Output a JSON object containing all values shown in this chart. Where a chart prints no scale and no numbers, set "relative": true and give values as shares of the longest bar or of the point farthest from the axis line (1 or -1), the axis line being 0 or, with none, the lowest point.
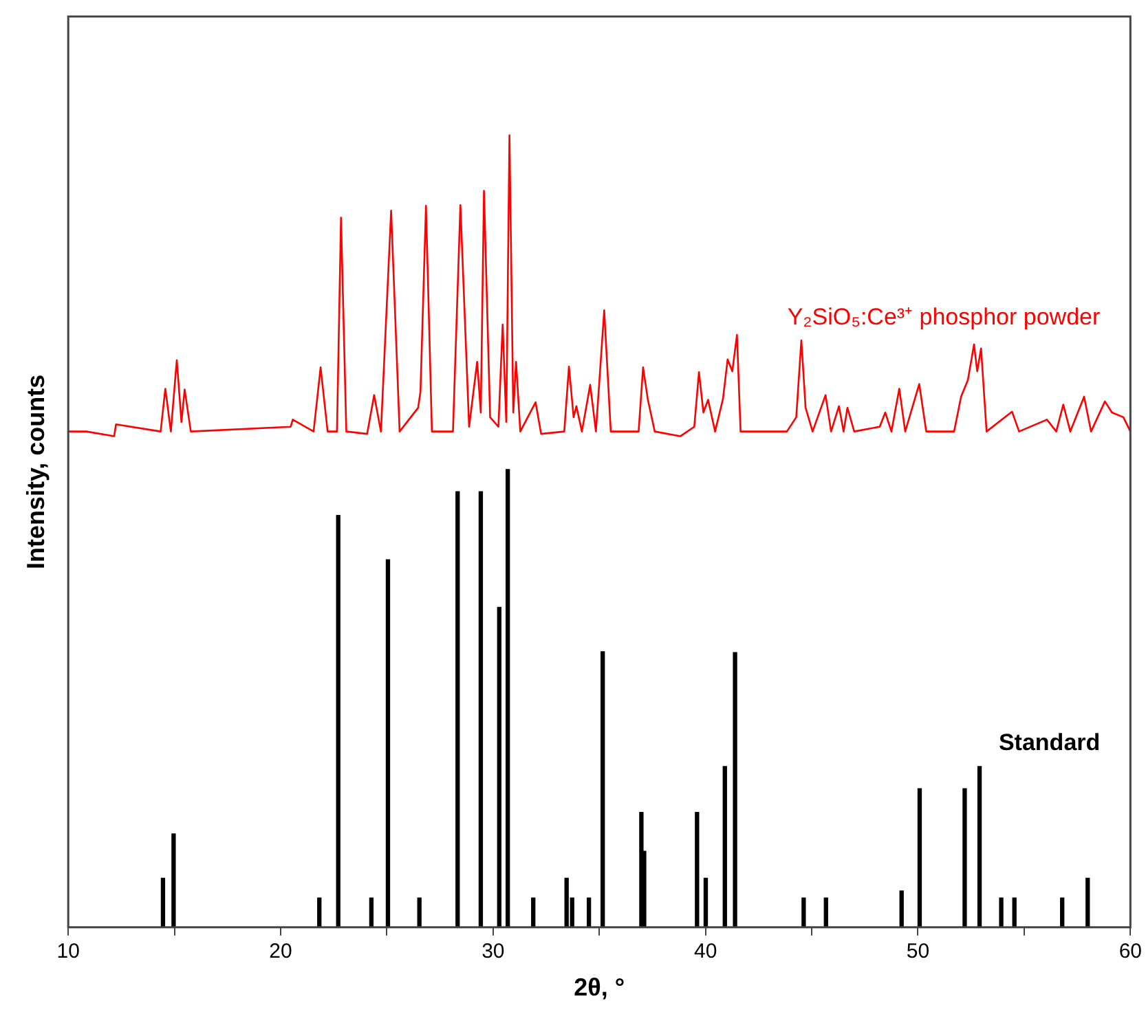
{
  "chart_data": {
    "type": "line",
    "xlabel": "2θ, °",
    "ylabel": "Intensity, counts",
    "relative": true,
    "legend": false,
    "grid": false,
    "xlim": [
      10,
      60
    ],
    "xticks": [
      10,
      {
        "value": 15,
        "label": null
      },
      20,
      {
        "value": 25,
        "label": null
      },
      30,
      {
        "value": 35,
        "label": null
      },
      40,
      {
        "value": 45,
        "label": null
      },
      50,
      {
        "value": 55,
        "label": null
      },
      60
    ],
    "series": [
      {
        "name": "Y₂SiO₅:Ce³⁺ phosphor powder",
        "color": "#ff0000",
        "marker": "none",
        "x": [
          10,
          10.85,
          12.16,
          12.25,
          14.35,
          14.57,
          14.83,
          15.11,
          15.33,
          15.48,
          15.77,
          20.47,
          20.57,
          21.55,
          21.88,
          22.21,
          22.65,
          22.84,
          23.09,
          24.07,
          24.4,
          24.72,
          25.2,
          25.6,
          26.47,
          26.58,
          26.84,
          27.12,
          28.11,
          28.46,
          28.87,
          29.25,
          29.42,
          29.57,
          29.86,
          30.25,
          30.45,
          30.62,
          30.77,
          30.95,
          31.08,
          31.28,
          32,
          32.26,
          33.35,
          33.57,
          33.79,
          33.92,
          34.18,
          34.57,
          34.84,
          35.23,
          35.54,
          35.75,
          36.85,
          37.06,
          37.28,
          37.61,
          38.81,
          39.47,
          39.69,
          39.9,
          40.12,
          40.45,
          40.82,
          41.04,
          41.26,
          41.48,
          41.65,
          43.83,
          44.27,
          44.51,
          44.71,
          45.04,
          45.65,
          45.91,
          46.28,
          46.5,
          46.68,
          47,
          48.2,
          48.46,
          48.75,
          49.12,
          49.4,
          50.06,
          50.39,
          51.7,
          52.03,
          52.35,
          52.64,
          52.79,
          52.97,
          53.23,
          54.43,
          54.76,
          56.07,
          56.51,
          56.84,
          57.17,
          57.82,
          58.15,
          58.8,
          59.13,
          59.67,
          60
        ],
        "values": [
          0.626,
          0.626,
          0.62,
          0.635,
          0.626,
          0.68,
          0.626,
          0.716,
          0.638,
          0.679,
          0.626,
          0.632,
          0.641,
          0.626,
          0.707,
          0.626,
          0.626,
          0.896,
          0.626,
          0.623,
          0.672,
          0.626,
          0.905,
          0.626,
          0.656,
          0.676,
          0.911,
          0.626,
          0.626,
          0.912,
          0.632,
          0.714,
          0.65,
          0.93,
          0.644,
          0.632,
          0.761,
          0.638,
          1,
          0.65,
          0.714,
          0.626,
          0.663,
          0.623,
          0.626,
          0.708,
          0.644,
          0.658,
          0.626,
          0.685,
          0.626,
          0.779,
          0.626,
          0.626,
          0.626,
          0.707,
          0.667,
          0.626,
          0.62,
          0.632,
          0.701,
          0.65,
          0.666,
          0.626,
          0.667,
          0.717,
          0.702,
          0.748,
          0.626,
          0.626,
          0.644,
          0.741,
          0.656,
          0.626,
          0.672,
          0.626,
          0.658,
          0.626,
          0.656,
          0.626,
          0.632,
          0.65,
          0.626,
          0.68,
          0.626,
          0.686,
          0.626,
          0.626,
          0.67,
          0.691,
          0.736,
          0.702,
          0.731,
          0.626,
          0.651,
          0.626,
          0.641,
          0.626,
          0.66,
          0.626,
          0.67,
          0.626,
          0.664,
          0.65,
          0.644,
          0.626
        ]
      },
      {
        "name": "Standard",
        "type": "bar",
        "color": "#000000",
        "x": [
          14.46,
          14.96,
          21.82,
          22.71,
          24.27,
          25.05,
          26.53,
          28.33,
          29.42,
          30.29,
          30.69,
          31.89,
          33.46,
          33.72,
          34.51,
          35.16,
          36.98,
          37.11,
          39.6,
          40.01,
          40.91,
          41.39,
          44.62,
          45.67,
          49.23,
          50.08,
          52.2,
          52.9,
          53.92,
          54.54,
          56.79,
          57.99
        ],
        "values": [
          0.062,
          0.118,
          0.037,
          0.52,
          0.037,
          0.464,
          0.037,
          0.55,
          0.55,
          0.404,
          0.578,
          0.037,
          0.062,
          0.037,
          0.037,
          0.348,
          0.145,
          0.096,
          0.145,
          0.062,
          0.203,
          0.347,
          0.037,
          0.037,
          0.046,
          0.175,
          0.175,
          0.203,
          0.037,
          0.037,
          0.037,
          0.062
        ]
      }
    ]
  }
}
